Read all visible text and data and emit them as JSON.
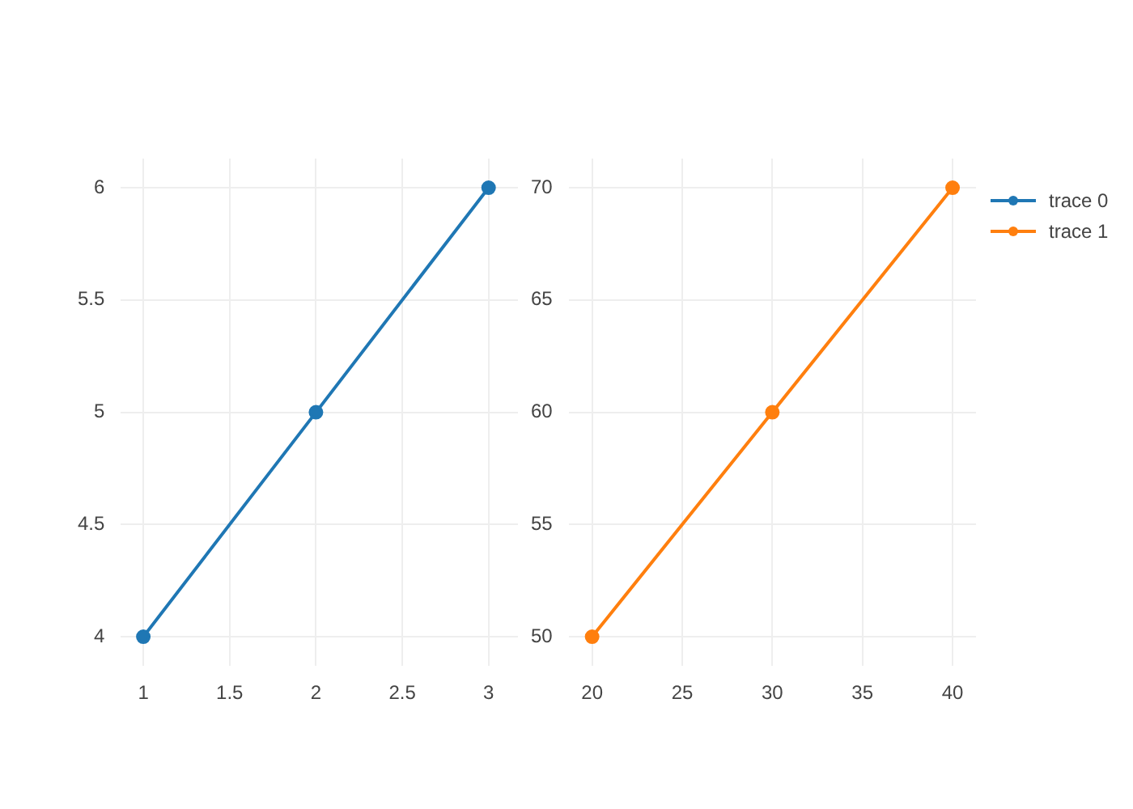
{
  "chart_data": [
    {
      "type": "line",
      "x": [
        1,
        2,
        3
      ],
      "series": [
        {
          "name": "trace 0",
          "color": "#1f77b4",
          "values": [
            4,
            5,
            6
          ]
        }
      ],
      "xlim": [
        0.87,
        3.17
      ],
      "ylim": [
        3.87,
        6.13
      ],
      "xticks": [
        1,
        1.5,
        2,
        2.5,
        3
      ],
      "yticks": [
        4,
        4.5,
        5,
        5.5,
        6
      ],
      "grid": true,
      "marker": "circle",
      "line_style": "solid",
      "legend": "top right"
    },
    {
      "type": "line",
      "x": [
        20,
        30,
        40
      ],
      "series": [
        {
          "name": "trace 1",
          "color": "#ff7f0e",
          "values": [
            50,
            60,
            70
          ]
        }
      ],
      "xlim": [
        18.7,
        41.3
      ],
      "ylim": [
        48.7,
        71.3
      ],
      "xticks": [
        20,
        25,
        30,
        35,
        40
      ],
      "yticks": [
        50,
        55,
        60,
        65,
        70
      ],
      "grid": true,
      "marker": "circle",
      "line_style": "solid",
      "legend": "top right"
    }
  ]
}
